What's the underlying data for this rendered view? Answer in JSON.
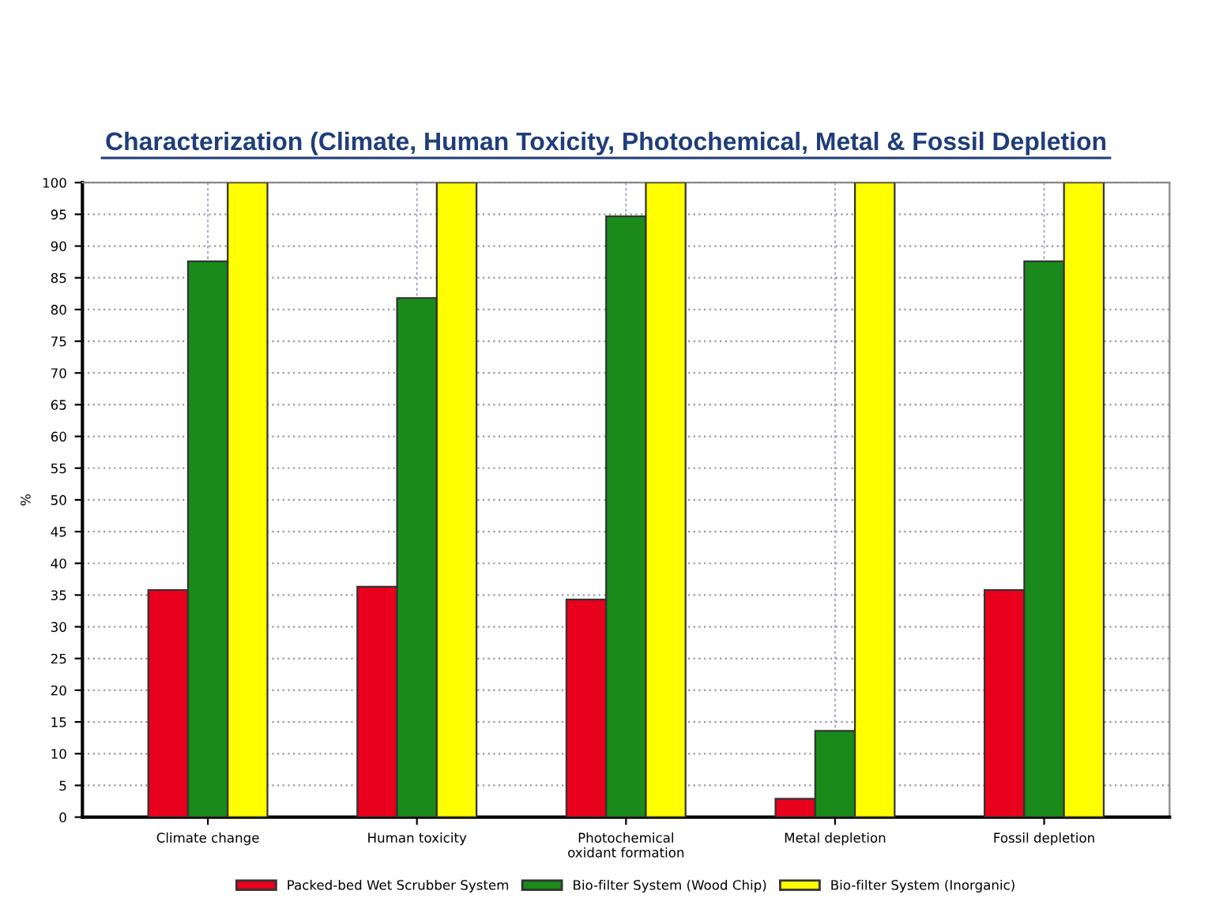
{
  "chart_data": {
    "type": "bar",
    "title": "Characterization (Climate, Human Toxicity, Photochemical, Metal & Fossil Depletion",
    "ylabel": "%",
    "categories": [
      "Climate change",
      "Human toxicity",
      "Photochemical\noxidant formation",
      "Metal depletion",
      "Fossil depletion"
    ],
    "series": [
      {
        "name": "Packed-bed Wet Scrubber System",
        "color": "#e8001c",
        "values": [
          35.8,
          36.3,
          34.3,
          2.9,
          35.8
        ]
      },
      {
        "name": "Bio-filter System (Wood Chip)",
        "color": "#1a8a1a",
        "values": [
          87.6,
          81.8,
          94.7,
          13.6,
          87.6
        ]
      },
      {
        "name": "Bio-filter System (Inorganic)",
        "color": "#ffff00",
        "values": [
          100,
          100,
          100,
          100,
          100
        ]
      }
    ],
    "ylim": [
      0,
      100
    ],
    "yticks": [
      0,
      5,
      10,
      15,
      20,
      25,
      30,
      35,
      40,
      45,
      50,
      55,
      60,
      65,
      70,
      75,
      80,
      85,
      90,
      95,
      100
    ],
    "grid": true,
    "legend": "bottom"
  }
}
